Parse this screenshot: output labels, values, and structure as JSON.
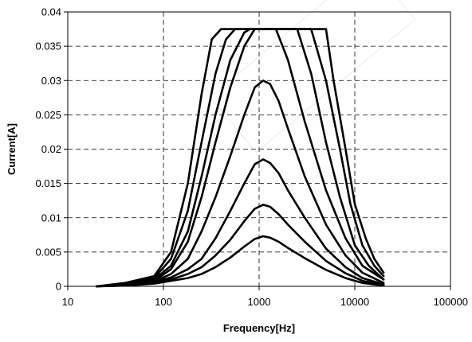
{
  "chart_data": {
    "type": "line",
    "title": "",
    "xlabel": "Frequency[Hz]",
    "ylabel": "Current[A]",
    "xscale": "log",
    "xlim": [
      10,
      100000
    ],
    "ylim": [
      0,
      0.04
    ],
    "grid": "dashed",
    "legend": "none",
    "line_color": "#000000",
    "x_ticks": [
      {
        "value": 10,
        "label": "10"
      },
      {
        "value": 100,
        "label": "100"
      },
      {
        "value": 1000,
        "label": "1000"
      },
      {
        "value": 10000,
        "label": "10000"
      },
      {
        "value": 100000,
        "label": "100000"
      }
    ],
    "y_ticks": [
      {
        "value": 0,
        "label": "0"
      },
      {
        "value": 0.005,
        "label": "0.005"
      },
      {
        "value": 0.01,
        "label": "0.01"
      },
      {
        "value": 0.015,
        "label": "0.015"
      },
      {
        "value": 0.02,
        "label": "0.02"
      },
      {
        "value": 0.025,
        "label": "0.025"
      },
      {
        "value": 0.03,
        "label": "0.03"
      },
      {
        "value": 0.035,
        "label": "0.035"
      },
      {
        "value": 0.04,
        "label": "0.04"
      }
    ],
    "series": [
      {
        "x": [
          20,
          40,
          80,
          120,
          180,
          250,
          320,
          400,
          450,
          1000,
          5000,
          6000,
          8000,
          10000,
          13000,
          16000,
          20000
        ],
        "y": [
          0,
          0.0005,
          0.0015,
          0.005,
          0.015,
          0.028,
          0.036,
          0.0375,
          0.0375,
          0.0375,
          0.0375,
          0.03,
          0.02,
          0.012,
          0.007,
          0.004,
          0.002
        ]
      },
      {
        "x": [
          20,
          40,
          80,
          120,
          180,
          250,
          350,
          450,
          560,
          1000,
          3500,
          5000,
          7000,
          9000,
          12000,
          16000,
          20000
        ],
        "y": [
          0,
          0.0004,
          0.0012,
          0.004,
          0.011,
          0.021,
          0.031,
          0.036,
          0.0375,
          0.0375,
          0.0375,
          0.03,
          0.02,
          0.012,
          0.006,
          0.003,
          0.0015
        ]
      },
      {
        "x": [
          20,
          40,
          80,
          120,
          180,
          250,
          350,
          500,
          700,
          800,
          2500,
          3500,
          5000,
          7000,
          10000,
          14000,
          20000
        ],
        "y": [
          0,
          0.0003,
          0.001,
          0.003,
          0.008,
          0.016,
          0.025,
          0.033,
          0.037,
          0.0375,
          0.0375,
          0.031,
          0.021,
          0.013,
          0.006,
          0.003,
          0.001
        ]
      },
      {
        "x": [
          20,
          40,
          80,
          120,
          180,
          250,
          350,
          500,
          700,
          900,
          1500,
          2000,
          3000,
          5000,
          8000,
          12000,
          20000
        ],
        "y": [
          0,
          0.0003,
          0.0008,
          0.0025,
          0.0065,
          0.013,
          0.021,
          0.029,
          0.035,
          0.0375,
          0.0375,
          0.033,
          0.024,
          0.014,
          0.007,
          0.003,
          0.001
        ]
      },
      {
        "x": [
          20,
          40,
          80,
          120,
          180,
          250,
          350,
          500,
          700,
          900,
          1100,
          1300,
          1600,
          2000,
          3000,
          5000,
          8000,
          12000,
          20000
        ],
        "y": [
          0,
          0.0002,
          0.0007,
          0.0018,
          0.004,
          0.008,
          0.013,
          0.019,
          0.025,
          0.029,
          0.03,
          0.0295,
          0.027,
          0.023,
          0.016,
          0.009,
          0.0045,
          0.002,
          0.0005
        ]
      },
      {
        "x": [
          20,
          40,
          80,
          120,
          180,
          250,
          350,
          500,
          700,
          900,
          1100,
          1300,
          1600,
          2000,
          3000,
          5000,
          8000,
          12000,
          20000
        ],
        "y": [
          0,
          0.0002,
          0.0006,
          0.0013,
          0.0025,
          0.004,
          0.007,
          0.011,
          0.015,
          0.0178,
          0.0185,
          0.018,
          0.0165,
          0.014,
          0.01,
          0.0055,
          0.0028,
          0.0012,
          0.0003
        ]
      },
      {
        "x": [
          20,
          40,
          80,
          120,
          180,
          250,
          350,
          500,
          700,
          900,
          1100,
          1300,
          1600,
          2000,
          3000,
          5000,
          8000,
          12000,
          20000
        ],
        "y": [
          0,
          0.0001,
          0.0005,
          0.001,
          0.0018,
          0.0028,
          0.0045,
          0.0068,
          0.0095,
          0.0113,
          0.0119,
          0.0116,
          0.0105,
          0.009,
          0.0065,
          0.0037,
          0.0019,
          0.0008,
          0.0002
        ]
      },
      {
        "x": [
          20,
          40,
          80,
          120,
          180,
          250,
          350,
          500,
          700,
          900,
          1100,
          1300,
          1600,
          2000,
          3000,
          5000,
          8000,
          12000,
          20000
        ],
        "y": [
          0,
          0.0001,
          0.0004,
          0.0008,
          0.0012,
          0.0018,
          0.0028,
          0.0042,
          0.0058,
          0.0069,
          0.0073,
          0.0071,
          0.0065,
          0.0056,
          0.0041,
          0.0024,
          0.0012,
          0.0005,
          0.0001
        ]
      }
    ]
  }
}
